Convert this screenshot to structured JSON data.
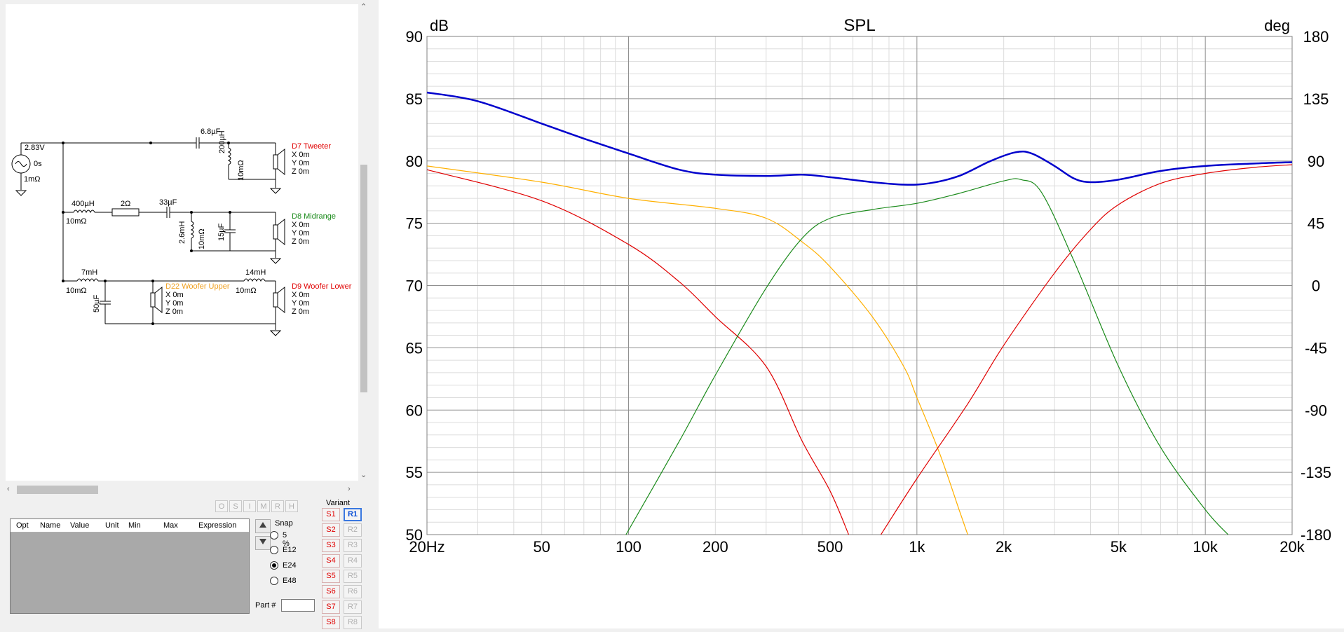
{
  "schematic": {
    "source": {
      "voltage": "2.83V",
      "delay": "0s",
      "resistance": "1mΩ"
    },
    "components": {
      "c_tweeter": "6.8µF",
      "l_tweeter": "200µH",
      "l_tweeter_r": "10mΩ",
      "l_mid_series": "400µH",
      "l_mid_series_r": "10mΩ",
      "r_mid": "2Ω",
      "c_mid": "33µF",
      "l_mid_shunt": "2.6mH",
      "l_mid_shunt_r": "10mΩ",
      "c_mid_shunt": "15µF",
      "l_woofer1": "7mH",
      "l_woofer1_r": "10mΩ",
      "c_woofer": "50µF",
      "l_woofer2": "14mH",
      "l_woofer2_r": "10mΩ"
    },
    "drivers": [
      {
        "name": "D7 Tweeter",
        "x": "X 0m",
        "y": "Y 0m",
        "z": "Z 0m",
        "color": "#e00000"
      },
      {
        "name": "D8 Midrange",
        "x": "X 0m",
        "y": "Y 0m",
        "z": "Z 0m",
        "color": "#1a8a1a"
      },
      {
        "name": "D22 Woofer Upper",
        "x": "X 0m",
        "y": "Y 0m",
        "z": "Z 0m",
        "color": "#f0a020"
      },
      {
        "name": "D9 Woofer Lower",
        "x": "X 0m",
        "y": "Y 0m",
        "z": "Z 0m",
        "color": "#e00000"
      }
    ]
  },
  "toolbar": {
    "buttons": [
      "O",
      "S",
      "I",
      "M",
      "R",
      "H"
    ]
  },
  "param_grid": {
    "columns": [
      "Opt",
      "Name",
      "Value",
      "Unit",
      "Min",
      "Max",
      "Expression"
    ]
  },
  "snap": {
    "title": "Snap",
    "options": [
      "5 %",
      "E12",
      "E24",
      "E48"
    ],
    "selected": "E24"
  },
  "part": {
    "label": "Part #",
    "value": ""
  },
  "variant": {
    "title": "Variant",
    "s_buttons": [
      "S1",
      "S2",
      "S3",
      "S4",
      "S5",
      "S6",
      "S7",
      "S8"
    ],
    "r_buttons": [
      "R1",
      "R2",
      "R3",
      "R4",
      "R5",
      "R6",
      "R7",
      "R8"
    ],
    "active": "R1"
  },
  "chart_data": {
    "type": "line",
    "title": "SPL",
    "ylabel_left": "dB",
    "ylabel_right": "deg",
    "x_scale": "log",
    "xlim": [
      20,
      20000
    ],
    "ylim": [
      50,
      90
    ],
    "ylim_right": [
      -180,
      180
    ],
    "x_ticks": [
      "20Hz",
      "50",
      "100",
      "200",
      "500",
      "1k",
      "2k",
      "5k",
      "10k",
      "20k"
    ],
    "y_ticks": [
      "90",
      "85",
      "80",
      "75",
      "70",
      "65",
      "60",
      "55",
      "50"
    ],
    "y_ticks_right": [
      "180",
      "135",
      "90",
      "45",
      "0",
      "-45",
      "-90",
      "-135",
      "-180"
    ],
    "grid": true,
    "series": [
      {
        "color": "#0000cc",
        "width": 2.5,
        "points": [
          [
            20,
            85.5
          ],
          [
            30,
            84.8
          ],
          [
            50,
            83.0
          ],
          [
            70,
            81.8
          ],
          [
            100,
            80.6
          ],
          [
            150,
            79.3
          ],
          [
            200,
            78.9
          ],
          [
            300,
            78.8
          ],
          [
            400,
            78.9
          ],
          [
            500,
            78.7
          ],
          [
            700,
            78.3
          ],
          [
            900,
            78.1
          ],
          [
            1100,
            78.2
          ],
          [
            1400,
            78.8
          ],
          [
            1800,
            80.0
          ],
          [
            2200,
            80.7
          ],
          [
            2500,
            80.6
          ],
          [
            3000,
            79.6
          ],
          [
            3500,
            78.6
          ],
          [
            4000,
            78.3
          ],
          [
            5000,
            78.5
          ],
          [
            7000,
            79.2
          ],
          [
            10000,
            79.6
          ],
          [
            15000,
            79.8
          ],
          [
            20000,
            79.9
          ]
        ]
      },
      {
        "color": "#ffb000",
        "width": 1.2,
        "points": [
          [
            20,
            79.6
          ],
          [
            50,
            78.3
          ],
          [
            100,
            77.0
          ],
          [
            200,
            76.2
          ],
          [
            300,
            75.4
          ],
          [
            400,
            73.5
          ],
          [
            500,
            71.5
          ],
          [
            700,
            67.5
          ],
          [
            900,
            63.5
          ],
          [
            1000,
            61.0
          ],
          [
            1200,
            56.5
          ],
          [
            1400,
            52.0
          ],
          [
            1500,
            50.0
          ]
        ]
      },
      {
        "color": "#e00000",
        "width": 1.2,
        "points": [
          [
            20,
            79.3
          ],
          [
            50,
            76.8
          ],
          [
            100,
            73.3
          ],
          [
            150,
            70.3
          ],
          [
            200,
            67.5
          ],
          [
            300,
            63.5
          ],
          [
            400,
            57.5
          ],
          [
            500,
            53.5
          ],
          [
            580,
            50.0
          ]
        ]
      },
      {
        "color": "#1a8a1a",
        "width": 1.2,
        "points": [
          [
            98,
            50.0
          ],
          [
            150,
            57.5
          ],
          [
            200,
            62.8
          ],
          [
            300,
            69.8
          ],
          [
            400,
            73.8
          ],
          [
            500,
            75.4
          ],
          [
            700,
            76.1
          ],
          [
            1000,
            76.6
          ],
          [
            1400,
            77.4
          ],
          [
            2000,
            78.4
          ],
          [
            2300,
            78.5
          ],
          [
            2700,
            77.5
          ],
          [
            3500,
            72.0
          ],
          [
            5000,
            63.5
          ],
          [
            7000,
            57.0
          ],
          [
            10000,
            52.0
          ],
          [
            12000,
            50.0
          ]
        ]
      },
      {
        "color": "#e00000",
        "width": 1.2,
        "points": [
          [
            750,
            50.0
          ],
          [
            1000,
            54.5
          ],
          [
            1500,
            60.5
          ],
          [
            2000,
            65.2
          ],
          [
            3000,
            71.0
          ],
          [
            4000,
            74.5
          ],
          [
            5000,
            76.5
          ],
          [
            7000,
            78.2
          ],
          [
            10000,
            79.0
          ],
          [
            15000,
            79.5
          ],
          [
            20000,
            79.7
          ]
        ]
      }
    ]
  }
}
